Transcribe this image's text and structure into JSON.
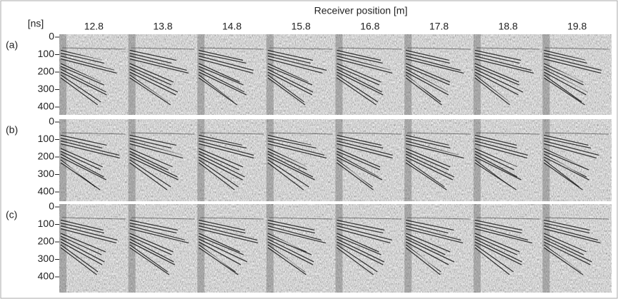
{
  "figure": {
    "x_label": "Receiver position [m]",
    "y_unit": "[ns]",
    "receiver_positions": [
      "12.8",
      "13.8",
      "14.8",
      "15.8",
      "16.8",
      "17.8",
      "18.8",
      "19.8"
    ],
    "panels": [
      {
        "label": "(a)",
        "yticks": [
          0,
          100,
          200,
          300,
          400
        ]
      },
      {
        "label": "(b)",
        "yticks": [
          0,
          100,
          200,
          300,
          400
        ]
      },
      {
        "label": "(c)",
        "yticks": [
          0,
          100,
          200,
          300,
          400
        ]
      }
    ]
  }
}
